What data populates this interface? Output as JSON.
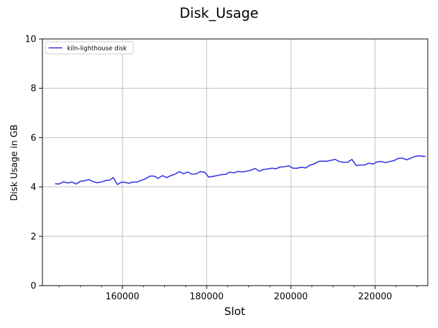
{
  "chart_data": {
    "type": "line",
    "title": "Disk_Usage",
    "xlabel": "Slot",
    "ylabel": "Disk Usage in GB",
    "xlim": [
      141000,
      232500
    ],
    "ylim": [
      0,
      10
    ],
    "x_ticks": [
      160000,
      180000,
      200000,
      220000
    ],
    "x_tick_labels": [
      "160000",
      "180000",
      "200000",
      "220000"
    ],
    "y_ticks": [
      0,
      2,
      4,
      6,
      8,
      10
    ],
    "y_tick_labels": [
      "0",
      "2",
      "4",
      "6",
      "8",
      "10"
    ],
    "grid": true,
    "legend": "top-left",
    "series": [
      {
        "name": "kiln-lighthouse disk",
        "color": "#3333e0",
        "points": [
          [
            144000,
            4.13
          ],
          [
            145000,
            4.12
          ],
          [
            146000,
            4.21
          ],
          [
            147000,
            4.16
          ],
          [
            148000,
            4.2
          ],
          [
            149000,
            4.12
          ],
          [
            150000,
            4.23
          ],
          [
            151000,
            4.25
          ],
          [
            152000,
            4.3
          ],
          [
            153000,
            4.22
          ],
          [
            154000,
            4.17
          ],
          [
            155000,
            4.2
          ],
          [
            156000,
            4.26
          ],
          [
            157000,
            4.28
          ],
          [
            157800,
            4.38
          ],
          [
            158800,
            4.1
          ],
          [
            159800,
            4.2
          ],
          [
            160800,
            4.18
          ],
          [
            161500,
            4.15
          ],
          [
            162500,
            4.2
          ],
          [
            163500,
            4.2
          ],
          [
            164500,
            4.27
          ],
          [
            165500,
            4.33
          ],
          [
            166500,
            4.44
          ],
          [
            167500,
            4.44
          ],
          [
            168500,
            4.35
          ],
          [
            169500,
            4.46
          ],
          [
            170500,
            4.38
          ],
          [
            171500,
            4.46
          ],
          [
            172500,
            4.52
          ],
          [
            173500,
            4.62
          ],
          [
            174500,
            4.54
          ],
          [
            175500,
            4.6
          ],
          [
            176500,
            4.52
          ],
          [
            177500,
            4.53
          ],
          [
            178500,
            4.62
          ],
          [
            179500,
            4.6
          ],
          [
            180500,
            4.4
          ],
          [
            181500,
            4.43
          ],
          [
            182500,
            4.46
          ],
          [
            183500,
            4.5
          ],
          [
            184500,
            4.51
          ],
          [
            185500,
            4.6
          ],
          [
            186500,
            4.57
          ],
          [
            187500,
            4.63
          ],
          [
            188500,
            4.61
          ],
          [
            189500,
            4.64
          ],
          [
            190500,
            4.68
          ],
          [
            191500,
            4.75
          ],
          [
            192500,
            4.64
          ],
          [
            193500,
            4.71
          ],
          [
            194500,
            4.73
          ],
          [
            195500,
            4.76
          ],
          [
            196500,
            4.74
          ],
          [
            197500,
            4.81
          ],
          [
            198500,
            4.82
          ],
          [
            199500,
            4.86
          ],
          [
            200500,
            4.76
          ],
          [
            201500,
            4.76
          ],
          [
            202500,
            4.8
          ],
          [
            203500,
            4.77
          ],
          [
            204500,
            4.88
          ],
          [
            205500,
            4.93
          ],
          [
            206500,
            5.03
          ],
          [
            207500,
            5.05
          ],
          [
            208500,
            5.04
          ],
          [
            209500,
            5.08
          ],
          [
            210500,
            5.12
          ],
          [
            211500,
            5.03
          ],
          [
            212500,
            5.0
          ],
          [
            213500,
            5.0
          ],
          [
            214500,
            5.12
          ],
          [
            215500,
            4.87
          ],
          [
            216500,
            4.89
          ],
          [
            217500,
            4.89
          ],
          [
            218500,
            4.96
          ],
          [
            219500,
            4.93
          ],
          [
            220500,
            5.02
          ],
          [
            221500,
            5.03
          ],
          [
            222500,
            4.99
          ],
          [
            223500,
            5.03
          ],
          [
            224500,
            5.07
          ],
          [
            225500,
            5.16
          ],
          [
            226500,
            5.17
          ],
          [
            227500,
            5.1
          ],
          [
            228500,
            5.17
          ],
          [
            229500,
            5.24
          ],
          [
            230500,
            5.26
          ],
          [
            231500,
            5.24
          ],
          [
            232000,
            5.25
          ]
        ]
      }
    ]
  }
}
